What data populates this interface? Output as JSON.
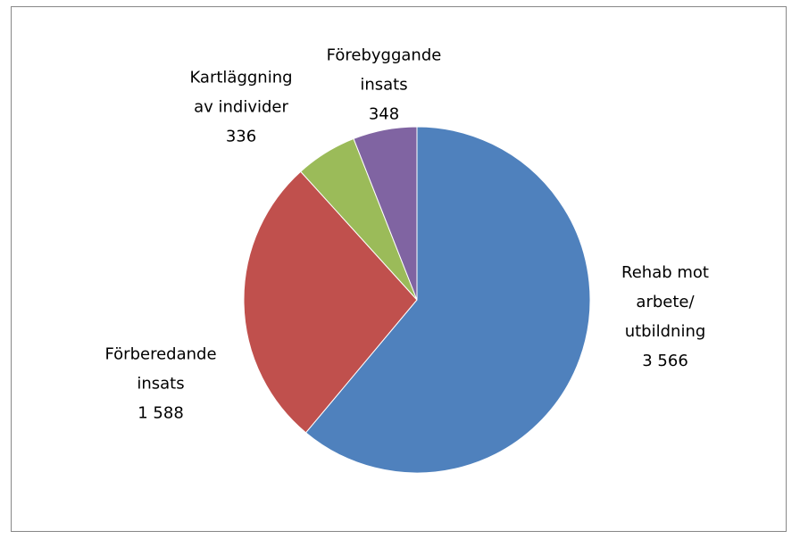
{
  "chart_data": {
    "type": "pie",
    "categories": [
      "Rehab mot arbete/ utbildning",
      "Förberedande insats",
      "Kartläggning av individer",
      "Förebyggande insats"
    ],
    "values": [
      3566,
      1588,
      336,
      348
    ],
    "value_labels": [
      "3 566",
      "1 588",
      "336",
      "348"
    ],
    "colors": [
      "#4f81bd",
      "#c0504d",
      "#9bbb59",
      "#8064a2"
    ]
  }
}
